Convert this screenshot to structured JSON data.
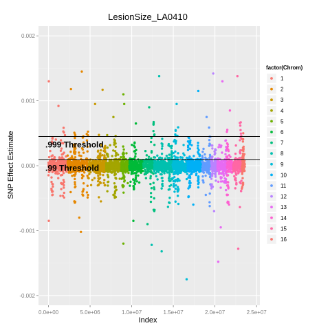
{
  "chart_data": {
    "type": "scatter",
    "title": "LesionSize_LA0410",
    "xlabel": "Index",
    "ylabel": "SNP Effect Estimate",
    "xlim": [
      -1200000,
      25400000
    ],
    "ylim": [
      -0.00215,
      0.00215
    ],
    "x_ticks": [
      {
        "value": 0,
        "label": "0.0e+00"
      },
      {
        "value": 5000000,
        "label": "5.0e+06"
      },
      {
        "value": 10000000,
        "label": "1.0e+07"
      },
      {
        "value": 15000000,
        "label": "1.5e+07"
      },
      {
        "value": 20000000,
        "label": "2.0e+07"
      },
      {
        "value": 25000000,
        "label": "2.5e+07"
      }
    ],
    "y_ticks": [
      {
        "value": 0.002,
        "label": "0.002"
      },
      {
        "value": 0.001,
        "label": "0.001"
      },
      {
        "value": 0.0,
        "label": "0.000"
      },
      {
        "value": -0.001,
        "label": "-0.001"
      },
      {
        "value": -0.002,
        "label": "-0.002"
      }
    ],
    "grid": true,
    "legend": {
      "title": "factor(Chrom)",
      "position": "right"
    },
    "thresholds": [
      {
        "label": ".999 Threshold",
        "value": 0.00045
      },
      {
        "label": ".99 Threshold",
        "value": 9e-05
      }
    ],
    "series": [
      {
        "name": "1",
        "color": "#F8766D",
        "x_range": [
          0,
          2300000
        ],
        "extremes": [
          [
            40000,
            0.0013
          ],
          [
            40000,
            -0.00085
          ],
          [
            1200000,
            0.00092
          ]
        ]
      },
      {
        "name": "2",
        "color": "#E58700",
        "x_range": [
          2300000,
          4800000
        ],
        "extremes": [
          [
            4000000,
            0.00145
          ],
          [
            2700000,
            0.00118
          ],
          [
            3900000,
            -0.00102
          ],
          [
            3700000,
            -0.0008
          ]
        ]
      },
      {
        "name": "3",
        "color": "#C99800",
        "x_range": [
          4800000,
          6900000
        ],
        "extremes": [
          [
            6500000,
            0.00117
          ],
          [
            5600000,
            0.00095
          ],
          [
            6300000,
            -0.00055
          ]
        ]
      },
      {
        "name": "4",
        "color": "#A3A500",
        "x_range": [
          6900000,
          8700000
        ],
        "extremes": [
          [
            7800000,
            0.00075
          ],
          [
            7800000,
            -0.00045
          ]
        ]
      },
      {
        "name": "5",
        "color": "#6BB100",
        "x_range": [
          8700000,
          9700000
        ],
        "extremes": [
          [
            9000000,
            0.0011
          ],
          [
            9000000,
            -0.0012
          ],
          [
            9100000,
            0.00095
          ]
        ]
      },
      {
        "name": "6",
        "color": "#00BA38",
        "x_range": [
          9700000,
          11400000
        ],
        "extremes": [
          [
            10500000,
            0.00065
          ],
          [
            10200000,
            -0.00085
          ]
        ]
      },
      {
        "name": "7",
        "color": "#00BF7D",
        "x_range": [
          11400000,
          12700000
        ],
        "extremes": [
          [
            12100000,
            0.0009
          ],
          [
            11900000,
            -0.0009
          ]
        ]
      },
      {
        "name": "8",
        "color": "#00C0AF",
        "x_range": [
          12700000,
          14900000
        ],
        "extremes": [
          [
            13300000,
            0.00138
          ],
          [
            12400000,
            -0.00122
          ],
          [
            13600000,
            -0.00132
          ]
        ]
      },
      {
        "name": "9",
        "color": "#00BCD8",
        "x_range": [
          14900000,
          16700000
        ],
        "extremes": [
          [
            16600000,
            -0.00175
          ],
          [
            15400000,
            0.00095
          ]
        ]
      },
      {
        "name": "10",
        "color": "#00B0F6",
        "x_range": [
          16700000,
          18500000
        ],
        "extremes": [
          [
            18000000,
            0.00115
          ],
          [
            17400000,
            -0.0006
          ]
        ]
      },
      {
        "name": "11",
        "color": "#619CFF",
        "x_range": [
          18500000,
          19500000
        ],
        "extremes": [
          [
            19000000,
            0.00075
          ],
          [
            18900000,
            -0.00045
          ]
        ]
      },
      {
        "name": "12",
        "color": "#B983FF",
        "x_range": [
          19500000,
          20300000
        ],
        "extremes": [
          [
            19800000,
            0.00142
          ],
          [
            19900000,
            -0.0007
          ]
        ]
      },
      {
        "name": "13",
        "color": "#E76BF3",
        "x_range": [
          20300000,
          21500000
        ],
        "extremes": [
          [
            20900000,
            0.0013
          ],
          [
            20400000,
            -0.00148
          ],
          [
            20700000,
            -0.00095
          ]
        ]
      },
      {
        "name": "14",
        "color": "#FD61D1",
        "x_range": [
          21500000,
          22200000
        ],
        "extremes": [
          [
            21800000,
            0.00085
          ],
          [
            21700000,
            -0.0006
          ]
        ]
      },
      {
        "name": "15",
        "color": "#FF67A4",
        "x_range": [
          22200000,
          23300000
        ],
        "extremes": [
          [
            22700000,
            0.00138
          ],
          [
            22800000,
            -0.00128
          ]
        ]
      },
      {
        "name": "16",
        "color": "#F8766D",
        "x_range": [
          23300000,
          23600000
        ],
        "extremes": [
          [
            23400000,
            0.0005
          ]
        ]
      }
    ]
  }
}
